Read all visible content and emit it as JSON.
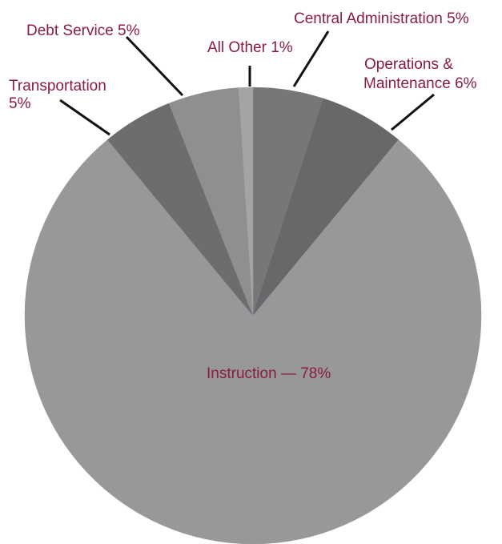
{
  "chart_data": {
    "type": "pie",
    "title": "",
    "start_angle_deg": 0,
    "direction": "clockwise",
    "slices": [
      {
        "label": "Central Administration",
        "value": 5,
        "value_label": "5%",
        "color": "#77777a"
      },
      {
        "label": "Operations & Maintenance",
        "value": 6,
        "value_label": "6%",
        "color": "#68686b"
      },
      {
        "label": "Instruction",
        "value": 78,
        "value_label": "78%",
        "color": "#98989b"
      },
      {
        "label": "Transportation",
        "value": 5,
        "value_label": "5%",
        "color": "#6d6d70"
      },
      {
        "label": "Debt Service",
        "value": 5,
        "value_label": "5%",
        "color": "#8f8f92"
      },
      {
        "label": "All Other",
        "value": 1,
        "value_label": "1%",
        "color": "#a4a4a7"
      }
    ],
    "label_text": {
      "central_administration": "Central Administration  5%",
      "operations_line1": "Operations &",
      "operations_line2": "Maintenance  6%",
      "instruction": "Instruction —   78%",
      "transportation_line1": "Transportation",
      "transportation_line2": "5%",
      "debt_service": "Debt Service  5%",
      "all_other": "All Other  1%"
    },
    "label_color": "#8a1c3e"
  }
}
